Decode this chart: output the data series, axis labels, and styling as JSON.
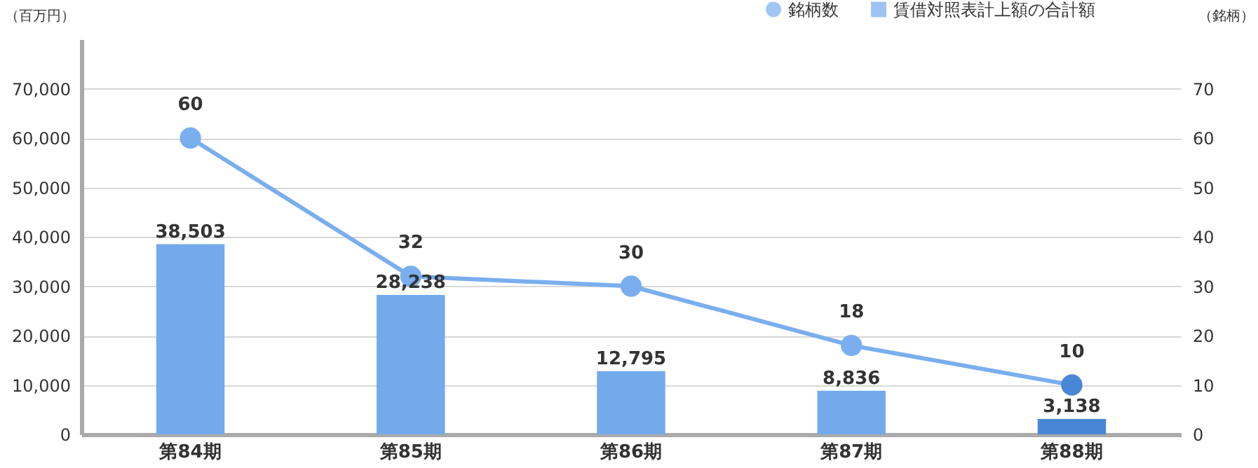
{
  "chart_data": {
    "type": "bar",
    "categories": [
      "第84期",
      "第85期",
      "第86期",
      "第87期",
      "第88期"
    ],
    "ylabel": "（百万円）",
    "y2label": "（銘柄）",
    "ylim": [
      0,
      80000
    ],
    "yticks": [
      0,
      {
        "value": 10000,
        "label": "10,000"
      },
      {
        "value": 20000,
        "label": "20,000"
      },
      {
        "value": 30000,
        "label": "30,000"
      },
      {
        "value": 40000,
        "label": "40,000"
      },
      {
        "value": 50000,
        "label": "50,000"
      },
      {
        "value": 60000,
        "label": "60,000"
      },
      {
        "value": 70000,
        "label": "70,000"
      }
    ],
    "y2lim": [
      0,
      80
    ],
    "y2ticks": [
      0,
      10,
      20,
      30,
      40,
      50,
      60,
      70
    ],
    "grid": "y",
    "legend": "top right",
    "data_labels": true,
    "series": [
      {
        "name": "賃借対照表計上額の合計額",
        "color": "#72aaeb",
        "colors": [
          "#72aaeb",
          "#72aaeb",
          "#72aaeb",
          "#72aaeb",
          "#4a86d6"
        ],
        "values": [
          38503,
          28238,
          12795,
          8836,
          3138
        ],
        "value_labels": [
          "38,503",
          "28,238",
          "12,795",
          "8,836",
          "3,138"
        ]
      },
      {
        "name": "銘柄数",
        "type": "line",
        "axis": "y2",
        "marker": "circle",
        "color": "#7aaeee",
        "colors": [
          "#7aaeee",
          "#7aaeee",
          "#7aaeee",
          "#7aaeee",
          "#4a86d6"
        ],
        "values": [
          60,
          32,
          30,
          18,
          10
        ]
      }
    ]
  }
}
